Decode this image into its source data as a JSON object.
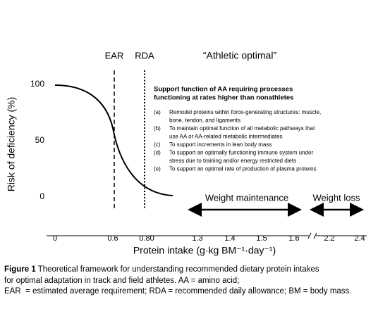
{
  "figure": {
    "markers": {
      "ear": "EAR",
      "rda": "RDA",
      "athletic": "“Athletic optimal”"
    },
    "y_axis": {
      "label": "Risk of deficiency (%)",
      "ticks": [
        "100",
        "50",
        "0"
      ]
    },
    "x_axis": {
      "label": "Protein intake (g·kg BM⁻¹·day⁻¹)",
      "ticks": [
        "0",
        "0.6",
        "0.80",
        "1.3",
        "1.4",
        "1.5",
        "1.6",
        "2.2",
        "2.4"
      ]
    },
    "heading": [
      "Support function of AA requiring processes",
      "functioning at rates higher than nonathletes"
    ],
    "items": [
      {
        "marker": "(a)",
        "lines": [
          "Remodel proteins within force-generating structures: muscle,",
          "bone, tendon, and ligaments"
        ]
      },
      {
        "marker": "(b)",
        "lines": [
          "To maintain optimal function of all metabolic pathways that",
          "use AA or AA-related metabolic intermediates"
        ]
      },
      {
        "marker": "(c)",
        "lines": [
          "To support increments in lean body mass"
        ]
      },
      {
        "marker": "(d)",
        "lines": [
          "To support an optimally functioning immune system under",
          "stress due to training and/or energy restricted diets"
        ]
      },
      {
        "marker": "(e)",
        "lines": [
          "To support an optimal rate of production of plasma proteins"
        ]
      }
    ],
    "weight_maintenance": "Weight maintenance",
    "weight_loss": "Weight loss"
  },
  "caption": {
    "label": "Figure 1",
    "lines": [
      " Theoretical framework for understanding recommended dietary protein intakes",
      "for optimal adaptation in track and field athletes. AA = amino acid;",
      "EAR  = estimated average requirement; RDA = recommended daily allowance; BM = body mass."
    ]
  }
}
